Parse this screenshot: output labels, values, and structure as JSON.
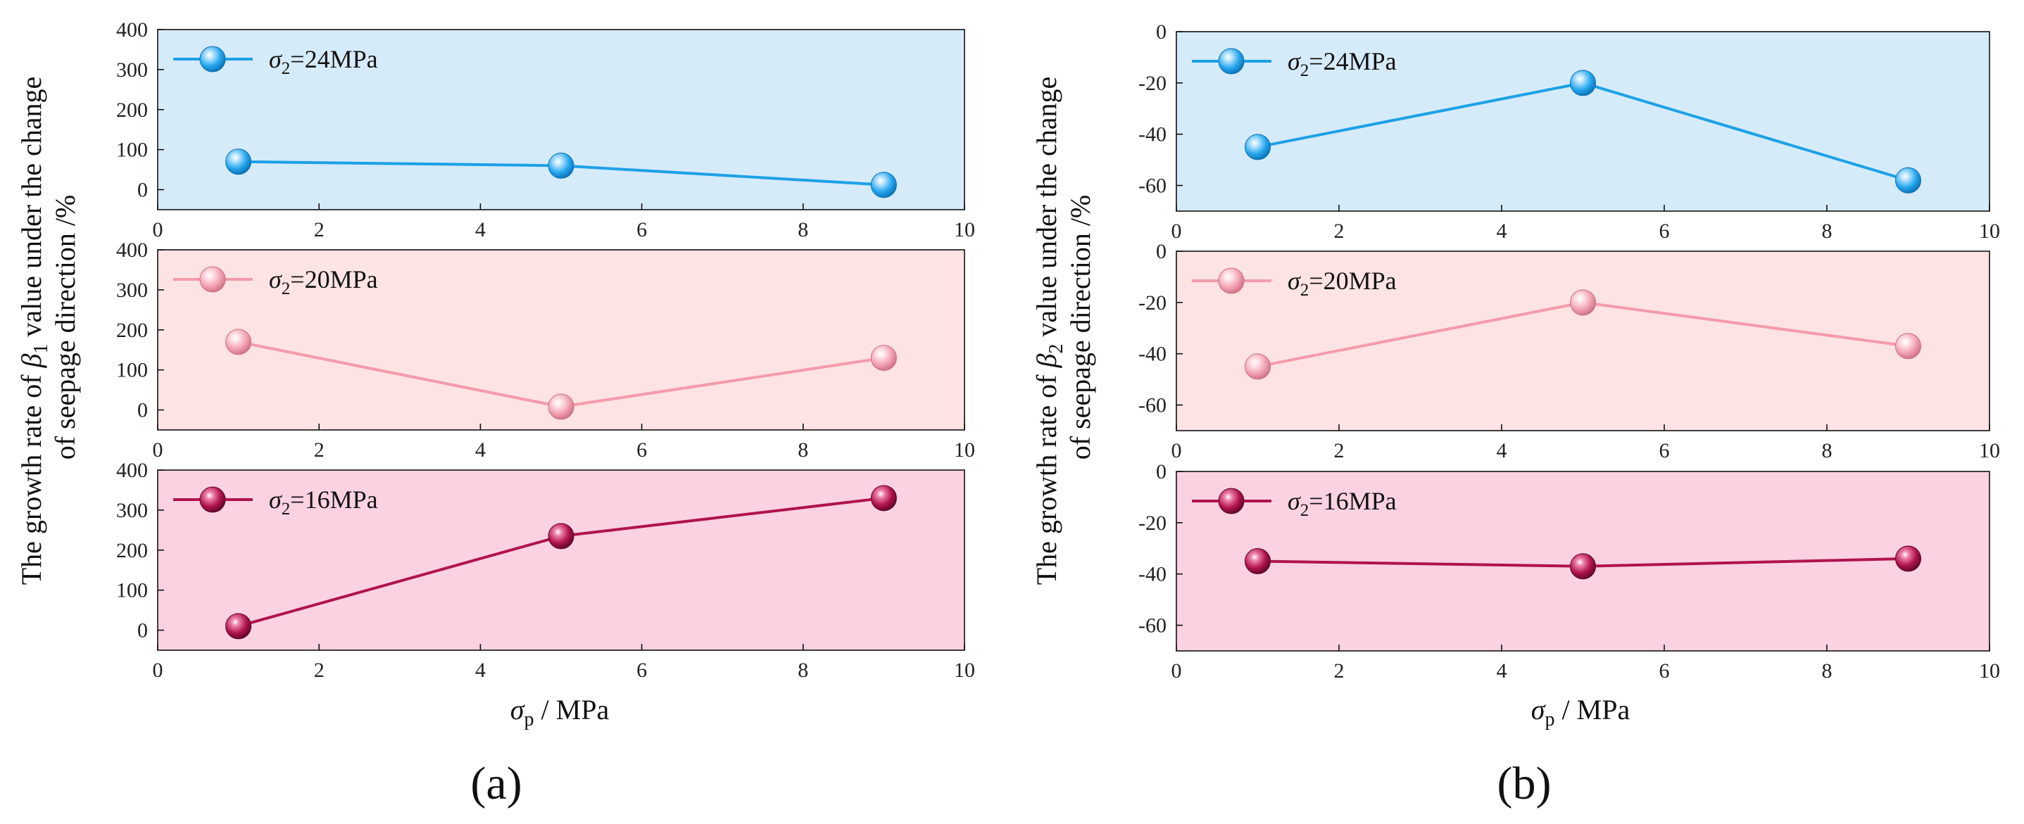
{
  "figure": {
    "panel_labels": [
      "(a)",
      "(b)"
    ],
    "y_title_a": [
      "The growth rate of β1 value under the change",
      "of seepage direction /%"
    ],
    "y_title_b": [
      "The growth rate of β2 value under the change",
      "of seepage direction /%"
    ],
    "x_title": "σp / MPa"
  },
  "chart_data": [
    {
      "type": "line",
      "id": "a-top",
      "panel": "(a)",
      "legend": "σ2=24MPa",
      "legend_position": "top-left",
      "x": [
        1,
        5,
        9
      ],
      "y": [
        70,
        60,
        12
      ],
      "xlim": [
        0,
        10
      ],
      "xticks": [
        0,
        2,
        4,
        6,
        8,
        10
      ],
      "ylim": [
        -50,
        400
      ],
      "yticks": [
        0,
        100,
        200,
        300,
        400
      ],
      "line_color": "#1da1e6",
      "background": "#d6ebfa",
      "marker_fill": "#26a7ee",
      "marker_light": "#b9e4ff",
      "marker_edge": "#0a6fb4"
    },
    {
      "type": "line",
      "id": "a-mid",
      "panel": "(a)",
      "legend": "σ2=20MPa",
      "legend_position": "top-left",
      "x": [
        1,
        5,
        9
      ],
      "y": [
        170,
        8,
        130
      ],
      "xlim": [
        0,
        10
      ],
      "xticks": [
        0,
        2,
        4,
        6,
        8,
        10
      ],
      "ylim": [
        -50,
        400
      ],
      "yticks": [
        0,
        100,
        200,
        300,
        400
      ],
      "line_color": "#f49aac",
      "background": "#fde3e3",
      "marker_fill": "#f3a3b3",
      "marker_light": "#ffe2e8",
      "marker_edge": "#cc6e83"
    },
    {
      "type": "line",
      "id": "a-bot",
      "panel": "(a)",
      "legend": "σ2=16MPa",
      "legend_position": "top-left",
      "x": [
        1,
        5,
        9
      ],
      "y": [
        10,
        235,
        330
      ],
      "xlim": [
        0,
        10
      ],
      "xticks": [
        0,
        2,
        4,
        6,
        8,
        10
      ],
      "ylim": [
        -50,
        400
      ],
      "yticks": [
        0,
        100,
        200,
        300,
        400
      ],
      "line_color": "#b0134e",
      "background": "#fbd2e1",
      "marker_fill": "#b0134e",
      "marker_light": "#ec7fa7",
      "marker_edge": "#5c0527"
    },
    {
      "type": "line",
      "id": "b-top",
      "panel": "(b)",
      "legend": "σ2=24MPa",
      "legend_position": "top-left",
      "x": [
        1,
        5,
        9
      ],
      "y": [
        -45,
        -20,
        -58
      ],
      "xlim": [
        0,
        10
      ],
      "xticks": [
        0,
        2,
        4,
        6,
        8,
        10
      ],
      "ylim": [
        -70,
        0
      ],
      "yticks": [
        -60,
        -40,
        -20,
        0
      ],
      "line_color": "#1da1e6",
      "background": "#d6ebfa",
      "marker_fill": "#26a7ee",
      "marker_light": "#b9e4ff",
      "marker_edge": "#0a6fb4"
    },
    {
      "type": "line",
      "id": "b-mid",
      "panel": "(b)",
      "legend": "σ2=20MPa",
      "legend_position": "top-left",
      "x": [
        1,
        5,
        9
      ],
      "y": [
        -45,
        -20,
        -37
      ],
      "xlim": [
        0,
        10
      ],
      "xticks": [
        0,
        2,
        4,
        6,
        8,
        10
      ],
      "ylim": [
        -70,
        0
      ],
      "yticks": [
        -60,
        -40,
        -20,
        0
      ],
      "line_color": "#f49aac",
      "background": "#fde3e3",
      "marker_fill": "#f3a3b3",
      "marker_light": "#ffe2e8",
      "marker_edge": "#cc6e83"
    },
    {
      "type": "line",
      "id": "b-bot",
      "panel": "(b)",
      "legend": "σ2=16MPa",
      "legend_position": "top-left",
      "x": [
        1,
        5,
        9
      ],
      "y": [
        -35,
        -37,
        -34
      ],
      "xlim": [
        0,
        10
      ],
      "xticks": [
        0,
        2,
        4,
        6,
        8,
        10
      ],
      "ylim": [
        -70,
        0
      ],
      "yticks": [
        -60,
        -40,
        -20,
        0
      ],
      "line_color": "#b0134e",
      "background": "#fbd2e1",
      "marker_fill": "#b0134e",
      "marker_light": "#ec7fa7",
      "marker_edge": "#5c0527"
    }
  ]
}
